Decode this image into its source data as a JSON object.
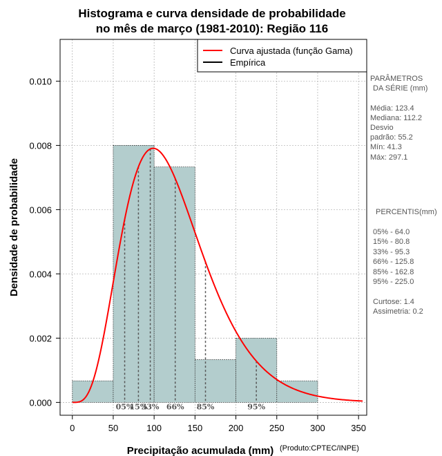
{
  "colors": {
    "bar_fill": "#b3cdcd",
    "bar_stroke": "#333333",
    "curve": "#ff0000",
    "empirical": "#000000",
    "grid": "#aaaaaa",
    "percentile_line": "#555555"
  },
  "credit": "(Produto:CPTEC/INPE)",
  "side_panel": {
    "params_title_1": "PARÂMETROS",
    "params_title_2": "DA SÉRIE (mm)",
    "params": [
      "Média:  123.4",
      "Mediana:  112.2",
      "Desvio",
      "padrão:  55.2",
      "Mín:  41.3",
      "Máx:  297.1"
    ],
    "percentis_title": "PERCENTIS(mm)",
    "percentis": [
      "05% -  64.0",
      "15% -  80.8",
      "33% -  95.3",
      "66% -  125.8",
      "85% -  162.8",
      "95% -  225.0"
    ],
    "stats": [
      "Curtose:  1.4",
      "Assimetria:  0.2"
    ]
  },
  "chart_data": {
    "type": "histogram",
    "title": "Histograma e curva densidade de probabilidade",
    "subtitle": "no mês de março (1981-2010): Região 116",
    "xlabel": "Precipitação acumulada (mm)",
    "ylabel": "Densidade de probabilidade",
    "xlim": [
      -15,
      360
    ],
    "ylim": [
      -0.0004,
      0.0113
    ],
    "x_ticks": [
      0,
      50,
      100,
      150,
      200,
      250,
      300,
      350
    ],
    "x_tick_labels": [
      "0",
      "50",
      "100",
      "150",
      "200",
      "250",
      "300",
      "350"
    ],
    "y_ticks": [
      0.0,
      0.002,
      0.004,
      0.006,
      0.008,
      0.01
    ],
    "y_tick_labels": [
      "0.000",
      "0.002",
      "0.004",
      "0.006",
      "0.008",
      "0.010"
    ],
    "grid": true,
    "bins": [
      {
        "x0": 0,
        "x1": 50,
        "density": 0.00067
      },
      {
        "x0": 50,
        "x1": 100,
        "density": 0.008
      },
      {
        "x0": 100,
        "x1": 150,
        "density": 0.00733
      },
      {
        "x0": 150,
        "x1": 200,
        "density": 0.00133
      },
      {
        "x0": 200,
        "x1": 250,
        "density": 0.002
      },
      {
        "x0": 250,
        "x1": 300,
        "density": 0.00067
      }
    ],
    "fitted_curve": {
      "name": "Curva ajustada (função Gama)",
      "shape": 5.0,
      "scale": 24.7
    },
    "empirical_legend": "Empírica",
    "percentiles": [
      {
        "label": "05%",
        "value": 64.0
      },
      {
        "label": "15%",
        "value": 80.8
      },
      {
        "label": "33%",
        "value": 95.3
      },
      {
        "label": "66%",
        "value": 125.8
      },
      {
        "label": "85%",
        "value": 162.8
      },
      {
        "label": "95%",
        "value": 225.0
      }
    ],
    "legend_position": "top-right"
  }
}
